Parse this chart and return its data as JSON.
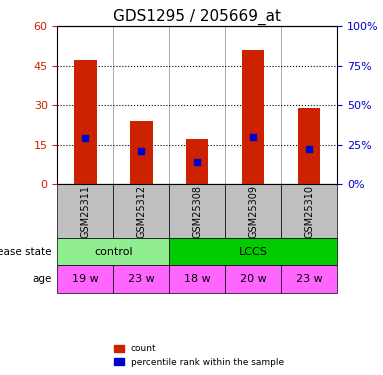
{
  "title": "GDS1295 / 205669_at",
  "samples": [
    "GSM25311",
    "GSM25312",
    "GSM25308",
    "GSM25309",
    "GSM25310"
  ],
  "counts": [
    47,
    24,
    17,
    51,
    29
  ],
  "percentiles": [
    29,
    21,
    14,
    30,
    22
  ],
  "ylim_left": [
    0,
    60
  ],
  "ylim_right": [
    0,
    100
  ],
  "yticks_left": [
    0,
    15,
    30,
    45,
    60
  ],
  "yticks_right": [
    0,
    25,
    50,
    75,
    100
  ],
  "disease_state": [
    "control",
    "control",
    "LCCS",
    "LCCS",
    "LCCS"
  ],
  "disease_control_color": "#90EE90",
  "disease_lccs_color": "#00CC00",
  "age": [
    "19 w",
    "23 w",
    "18 w",
    "20 w",
    "23 w"
  ],
  "age_color": "#FF66FF",
  "bar_color": "#CC2200",
  "marker_color": "#0000CC",
  "bar_width": 0.4,
  "grid_color": "#000000",
  "sample_bg_color": "#C0C0C0",
  "left_axis_color": "#CC2200",
  "right_axis_color": "#0000CC"
}
